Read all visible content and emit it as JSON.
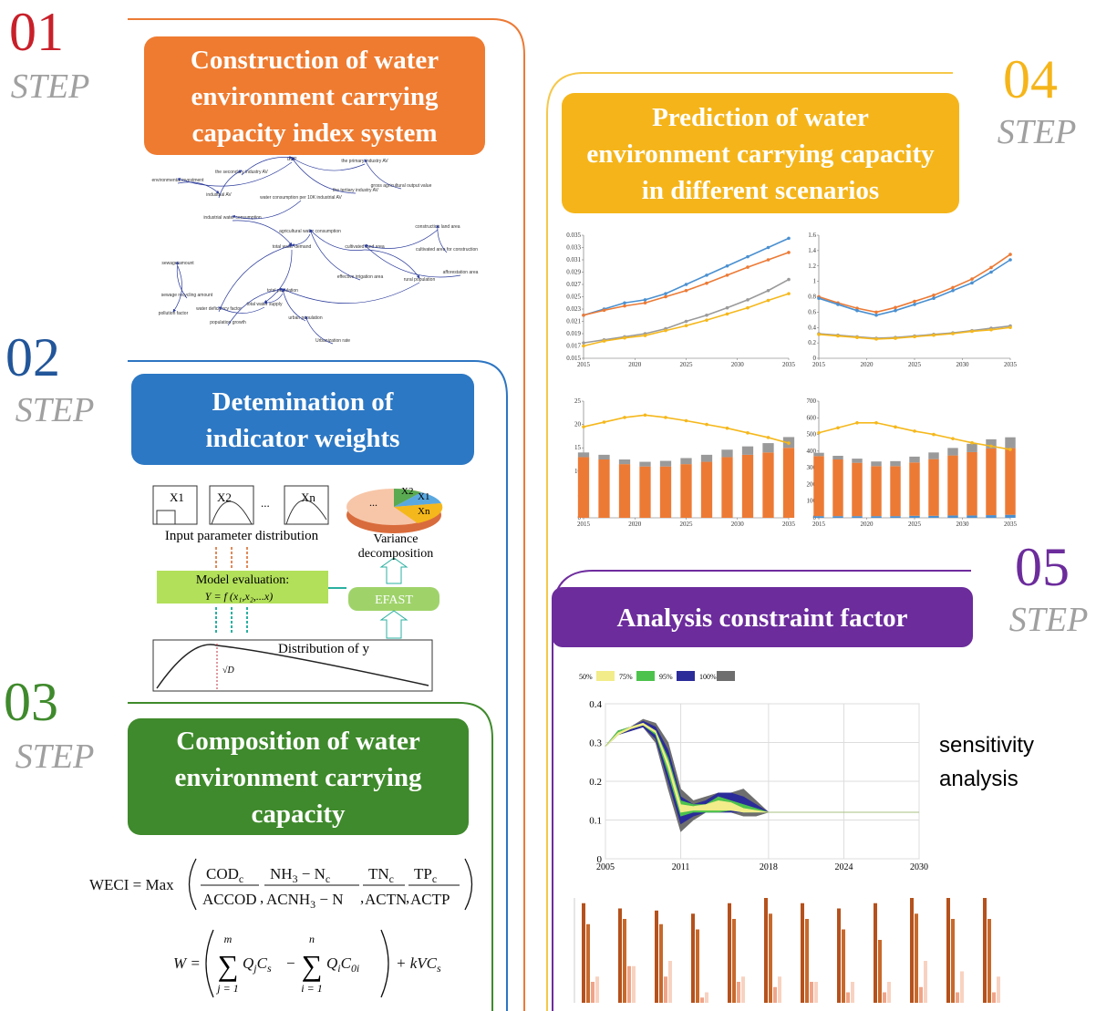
{
  "steps": [
    {
      "number": "01",
      "label": "STEP",
      "title_lines": [
        "Construction of water",
        "environment carrying",
        "capacity index system"
      ]
    },
    {
      "number": "02",
      "label": "STEP",
      "title_lines": [
        "Detemination of",
        "indicator weights"
      ]
    },
    {
      "number": "03",
      "label": "STEP",
      "title_lines": [
        "Composition of water",
        "environment carrying",
        "capacity"
      ]
    },
    {
      "number": "04",
      "label": "STEP",
      "title_lines": [
        "Prediction of water",
        "environment carrying capacity",
        "in different scenarios"
      ]
    },
    {
      "number": "05",
      "label": "STEP",
      "title_lines": [
        "Analysis constraint factor"
      ]
    }
  ],
  "network": {
    "nodes": [
      "GDP",
      "the primary industry AV",
      "the secondary industry AV",
      "the tertiary industry AV",
      "industrial AV",
      "environmental investment",
      "water consumption per 10K industrial AV",
      "gross agricultural output value",
      "industrial water consumption",
      "total water demand",
      "agricultural water consumption",
      "cultivated land area",
      "construction land area",
      "cultivated area for construction",
      "afforestation area",
      "effective irrigation area",
      "urban population",
      "rural population",
      "total population",
      "sewage amount",
      "pollution factor",
      "water deficiency factor",
      "population growth",
      "Urbanization rate",
      "sewage recycling amount",
      "total water supply"
    ]
  },
  "weights": {
    "boxes": [
      "X1",
      "X2",
      "...",
      "Xn"
    ],
    "input_label": "Input parameter distribution",
    "model_label": "Model evaluation:",
    "model_formula": "Y = f (x₁,x₂,...x)",
    "pie_labels": [
      "...",
      "X2",
      "X1",
      "Xn"
    ],
    "variance_label": [
      "Variance",
      "decomposition"
    ],
    "efast": "EFAST",
    "distribution_label": "Distribution of y",
    "sqrt_label": "√D"
  },
  "formulas": {
    "weci": {
      "lhs": "WECI = Max",
      "separator": ",",
      "terms": [
        {
          "num": [
            "COD",
            "c"
          ],
          "den": [
            "ACCOD"
          ]
        },
        {
          "num": [
            "NH",
            "3",
            " − N",
            "c"
          ],
          "den": [
            "ACNH",
            "3",
            " − N"
          ]
        },
        {
          "num": [
            "TN",
            "c"
          ],
          "den": [
            "ACTN"
          ]
        },
        {
          "num": [
            "TP",
            "c"
          ],
          "den": [
            "ACTP"
          ]
        }
      ]
    },
    "w": {
      "lhs": "W =",
      "minus": "−",
      "sums": [
        {
          "sym": "∑",
          "upper": "m",
          "lower": "j = 1",
          "body": [
            "Q",
            "j",
            "C",
            "s"
          ]
        },
        {
          "sym": "∑",
          "upper": "n",
          "lower": "i = 1",
          "body": [
            "Q",
            "i",
            "C",
            "0i"
          ]
        }
      ],
      "tail": [
        "+ kVC",
        "s"
      ]
    }
  },
  "prediction": {
    "charts": [
      {
        "xlim": [
          2015,
          2035
        ],
        "xticks": [
          2015,
          2020,
          2025,
          2030,
          2035
        ],
        "ylim": [
          0.015,
          0.035
        ],
        "yticks": [
          0.015,
          0.017,
          0.019,
          0.021,
          0.023,
          0.025,
          0.027,
          0.029,
          0.031,
          0.033,
          0.035
        ],
        "x": [
          2015,
          2017,
          2019,
          2021,
          2023,
          2025,
          2027,
          2029,
          2031,
          2033,
          2035
        ],
        "series": [
          {
            "mark": "line",
            "color": "#4a90d0",
            "values": [
              0.022,
              0.023,
              0.024,
              0.0245,
              0.0255,
              0.027,
              0.0285,
              0.03,
              0.0315,
              0.033,
              0.0345
            ]
          },
          {
            "mark": "line",
            "color": "#ec7a35",
            "values": [
              0.022,
              0.0228,
              0.0235,
              0.024,
              0.025,
              0.026,
              0.0272,
              0.0285,
              0.0298,
              0.031,
              0.0322
            ]
          },
          {
            "mark": "line",
            "color": "#9a9a9a",
            "values": [
              0.0175,
              0.018,
              0.0185,
              0.019,
              0.0198,
              0.021,
              0.022,
              0.0232,
              0.0245,
              0.026,
              0.0278
            ]
          },
          {
            "mark": "line",
            "color": "#f5b81c",
            "values": [
              0.017,
              0.0178,
              0.0183,
              0.0187,
              0.0195,
              0.0203,
              0.0212,
              0.0222,
              0.0232,
              0.0244,
              0.0255
            ]
          }
        ]
      },
      {
        "xlim": [
          2015,
          2035
        ],
        "xticks": [
          2015,
          2020,
          2025,
          2030,
          2035
        ],
        "ylim": [
          0,
          1.6
        ],
        "yticks": [
          0,
          0.2,
          0.4,
          0.6,
          0.8,
          1,
          1.2,
          1.4,
          1.6
        ],
        "x": [
          2015,
          2017,
          2019,
          2021,
          2023,
          2025,
          2027,
          2029,
          2031,
          2033,
          2035
        ],
        "series": [
          {
            "mark": "line",
            "color": "#ec7a35",
            "values": [
              0.8,
              0.72,
              0.65,
              0.6,
              0.66,
              0.74,
              0.82,
              0.92,
              1.03,
              1.18,
              1.35
            ]
          },
          {
            "mark": "line",
            "color": "#4a90d0",
            "values": [
              0.78,
              0.7,
              0.62,
              0.56,
              0.62,
              0.7,
              0.78,
              0.88,
              0.98,
              1.12,
              1.28
            ]
          },
          {
            "mark": "line",
            "color": "#9a9a9a",
            "values": [
              0.32,
              0.3,
              0.28,
              0.26,
              0.27,
              0.29,
              0.31,
              0.33,
              0.36,
              0.39,
              0.42
            ]
          },
          {
            "mark": "line",
            "color": "#f5b81c",
            "values": [
              0.31,
              0.29,
              0.27,
              0.25,
              0.26,
              0.28,
              0.3,
              0.32,
              0.35,
              0.37,
              0.4
            ]
          }
        ]
      },
      {
        "xlim": [
          2015,
          2035
        ],
        "xticks": [
          2015,
          2020,
          2025,
          2030,
          2035
        ],
        "ylim": [
          0,
          25
        ],
        "yticks": [
          0,
          5,
          10,
          15,
          20,
          25
        ],
        "x": [
          2015,
          2017,
          2019,
          2021,
          2023,
          2025,
          2027,
          2029,
          2031,
          2033,
          2035
        ],
        "series": [
          {
            "mark": "bar",
            "color": "#ec7a35",
            "values": [
              13,
              12.5,
              11.5,
              11,
              11,
              11.5,
              12,
              13,
              13.5,
              14,
              15
            ]
          },
          {
            "mark": "bar",
            "color": "#9a9a9a",
            "values": [
              1,
              1,
              1,
              1,
              1.2,
              1.3,
              1.5,
              1.6,
              1.8,
              2,
              2.3
            ]
          },
          {
            "mark": "line",
            "color": "#f5b81c",
            "values": [
              19.5,
              20.5,
              21.5,
              22,
              21.5,
              20.8,
              20,
              19.2,
              18.2,
              17.2,
              16
            ]
          }
        ]
      },
      {
        "xlim": [
          2015,
          2035
        ],
        "xticks": [
          2015,
          2020,
          2025,
          2030,
          2035
        ],
        "ylim": [
          0,
          700
        ],
        "yticks": [
          0,
          100,
          200,
          300,
          400,
          500,
          600,
          700
        ],
        "x": [
          2015,
          2017,
          2019,
          2021,
          2023,
          2025,
          2027,
          2029,
          2031,
          2033,
          2035
        ],
        "series": [
          {
            "mark": "bar",
            "color": "#4a90d0",
            "values": [
              10,
              10,
              10,
              10,
              10,
              12,
              12,
              14,
              14,
              16,
              18
            ]
          },
          {
            "mark": "bar",
            "color": "#ec7a35",
            "values": [
              360,
              340,
              320,
              300,
              300,
              320,
              340,
              360,
              380,
              400,
              400
            ]
          },
          {
            "mark": "bar",
            "color": "#9a9a9a",
            "values": [
              20,
              22,
              25,
              28,
              30,
              35,
              40,
              45,
              50,
              55,
              65
            ]
          },
          {
            "mark": "line",
            "color": "#f5b81c",
            "values": [
              510,
              540,
              570,
              570,
              545,
              520,
              500,
              475,
              450,
              430,
              410
            ]
          }
        ]
      }
    ]
  },
  "sensitivity": {
    "side_label": [
      "sensitivity",
      "analysis"
    ],
    "xlim": [
      2005,
      2030
    ],
    "xticks": [
      2005,
      2011,
      2018,
      2024,
      2030
    ],
    "ylim": [
      0,
      0.4
    ],
    "yticks": [
      0,
      0.1,
      0.2,
      0.3,
      0.4
    ],
    "x": [
      2005,
      2006,
      2007,
      2008,
      2009,
      2010,
      2011,
      2012,
      2013,
      2014,
      2015,
      2016,
      2017,
      2018,
      2024,
      2030
    ],
    "bands": [
      {
        "name": "100%",
        "color": "#6e6e6e",
        "lower": [
          0.29,
          0.32,
          0.33,
          0.34,
          0.3,
          0.18,
          0.07,
          0.1,
          0.12,
          0.12,
          0.12,
          0.11,
          0.11,
          0.12,
          0.12,
          0.12
        ],
        "upper": [
          0.29,
          0.33,
          0.34,
          0.36,
          0.35,
          0.3,
          0.18,
          0.15,
          0.16,
          0.17,
          0.17,
          0.18,
          0.15,
          0.12,
          0.12,
          0.12
        ]
      },
      {
        "name": "95%",
        "color": "#2b2b9a",
        "lower": [
          0.29,
          0.32,
          0.33,
          0.34,
          0.31,
          0.2,
          0.09,
          0.11,
          0.12,
          0.12,
          0.12,
          0.12,
          0.12,
          0.12,
          0.12,
          0.12
        ],
        "upper": [
          0.29,
          0.33,
          0.34,
          0.355,
          0.34,
          0.28,
          0.16,
          0.14,
          0.15,
          0.17,
          0.17,
          0.16,
          0.14,
          0.12,
          0.12,
          0.12
        ]
      },
      {
        "name": "75%",
        "color": "#4dc24d",
        "lower": [
          0.29,
          0.32,
          0.335,
          0.345,
          0.32,
          0.22,
          0.11,
          0.12,
          0.12,
          0.12,
          0.125,
          0.12,
          0.12,
          0.12,
          0.12,
          0.12
        ],
        "upper": [
          0.29,
          0.33,
          0.34,
          0.35,
          0.33,
          0.26,
          0.15,
          0.14,
          0.14,
          0.16,
          0.15,
          0.14,
          0.13,
          0.12,
          0.12,
          0.12
        ]
      },
      {
        "name": "50%",
        "color": "#f2ec8a",
        "lower": [
          0.29,
          0.32,
          0.335,
          0.345,
          0.325,
          0.235,
          0.12,
          0.125,
          0.125,
          0.125,
          0.125,
          0.12,
          0.12,
          0.12,
          0.12,
          0.12
        ],
        "upper": [
          0.29,
          0.325,
          0.34,
          0.35,
          0.33,
          0.25,
          0.14,
          0.135,
          0.14,
          0.15,
          0.145,
          0.13,
          0.125,
          0.12,
          0.12,
          0.12
        ]
      }
    ]
  },
  "constraint_bars": {
    "ylim": [
      0,
      1
    ],
    "series": [
      {
        "color": "#b5511c",
        "values": [
          0.95,
          0.9,
          0.88,
          0.85,
          0.95,
          1,
          0.95,
          0.9,
          0.95,
          1,
          1,
          1
        ]
      },
      {
        "color": "#c8692c",
        "values": [
          0.75,
          0.8,
          0.75,
          0.7,
          0.8,
          0.85,
          0.8,
          0.7,
          0.6,
          0.85,
          0.8,
          0.8
        ]
      },
      {
        "color": "#f0a487",
        "values": [
          0.2,
          0.35,
          0.25,
          0.05,
          0.2,
          0.15,
          0.2,
          0.1,
          0.1,
          0.15,
          0.1,
          0.1
        ]
      },
      {
        "color": "#f8d2c0",
        "values": [
          0.25,
          0.35,
          0.4,
          0.1,
          0.25,
          0.25,
          0.2,
          0.2,
          0.2,
          0.4,
          0.3,
          0.25
        ]
      }
    ]
  }
}
